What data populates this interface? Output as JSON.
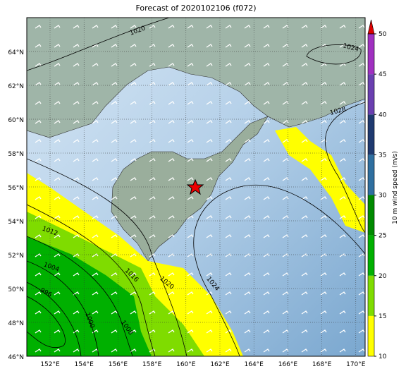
{
  "title": "Forecast of 2020102106 (f072)",
  "lat_labels": [
    "46°N",
    "48°N",
    "50°N",
    "52°N",
    "54°N",
    "56°N",
    "58°N",
    "60°N",
    "62°N",
    "64°N"
  ],
  "lon_labels": [
    "152°E",
    "154°E",
    "156°E",
    "158°E",
    "160°E",
    "162°E",
    "164°E",
    "166°E",
    "168°E",
    "170°E"
  ],
  "colorbar": {
    "label": "10 m wind speed (m/s)",
    "lim": [
      10,
      50
    ],
    "ticks": [
      10,
      15,
      20,
      25,
      30,
      35,
      40,
      45,
      50
    ],
    "colors": [
      "#ffff00",
      "#7fdc00",
      "#00b000",
      "#008a00",
      "#2f6fa0",
      "#1f3a70",
      "#6a3fb0",
      "#a030c0"
    ],
    "extend_color": "#dd0000"
  },
  "isobar_labels": [
    1020,
    1024,
    1028,
    1012,
    1004,
    996,
    1016,
    1020,
    1024,
    1008,
    1000
  ]
}
